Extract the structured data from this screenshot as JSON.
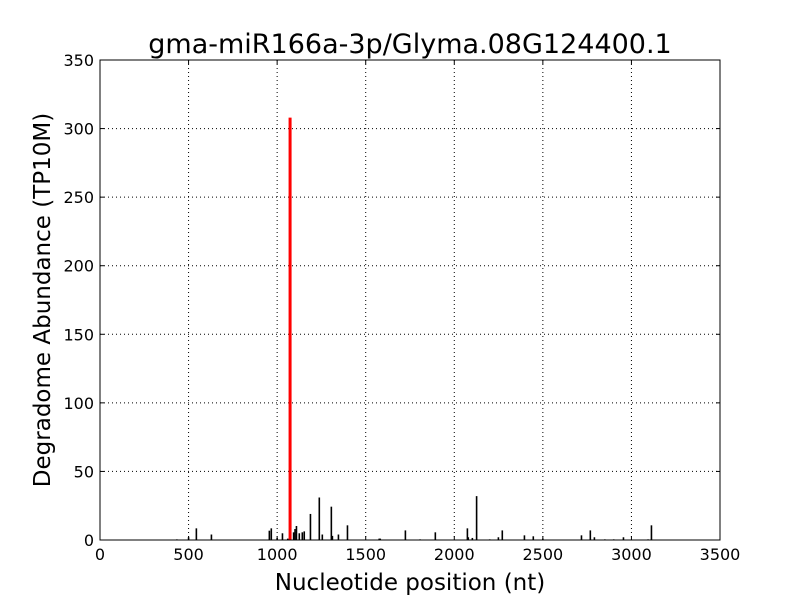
{
  "chart_data": {
    "type": "bar",
    "title": "gma-miR166a-3p/Glyma.08G124400.1",
    "xlabel": "Nucleotide position (nt)",
    "ylabel": "Degradome Abundance (TP10M)",
    "xlim": [
      0,
      3500
    ],
    "ylim": [
      0,
      350
    ],
    "xticks": [
      0,
      500,
      1000,
      1500,
      2000,
      2500,
      3000,
      3500
    ],
    "yticks": [
      0,
      50,
      100,
      150,
      200,
      250,
      300,
      350
    ],
    "grid": true,
    "colors": {
      "background": "#000000",
      "target": "#ff0000"
    },
    "series": [
      {
        "role": "background",
        "x": [
          434,
          500,
          544,
          629,
          956,
          967,
          1000,
          1030,
          1060,
          1093,
          1101,
          1109,
          1125,
          1142,
          1153,
          1188,
          1238,
          1255,
          1306,
          1312,
          1346,
          1397,
          1576,
          1582,
          1724,
          1807,
          1893,
          2074,
          2079,
          2102,
          2126,
          2200,
          2249,
          2271,
          2396,
          2446,
          2500,
          2718,
          2768,
          2791,
          2850,
          2900,
          2955,
          3094,
          3113
        ],
        "values": [
          0.5,
          2,
          8.5,
          4,
          6.8,
          8.5,
          1.5,
          4.9,
          1,
          5.6,
          8,
          10.2,
          4.9,
          5.6,
          6.3,
          19,
          31,
          4,
          24.3,
          3,
          4,
          10.7,
          1,
          1,
          7,
          0.5,
          5.6,
          8.5,
          2,
          1.5,
          32,
          0.5,
          2,
          7,
          3.4,
          2.7,
          1,
          3.4,
          7,
          2,
          0.5,
          0.5,
          2,
          0.5,
          10.7
        ]
      },
      {
        "role": "target",
        "x": [
          1073
        ],
        "values": [
          308
        ]
      }
    ]
  }
}
